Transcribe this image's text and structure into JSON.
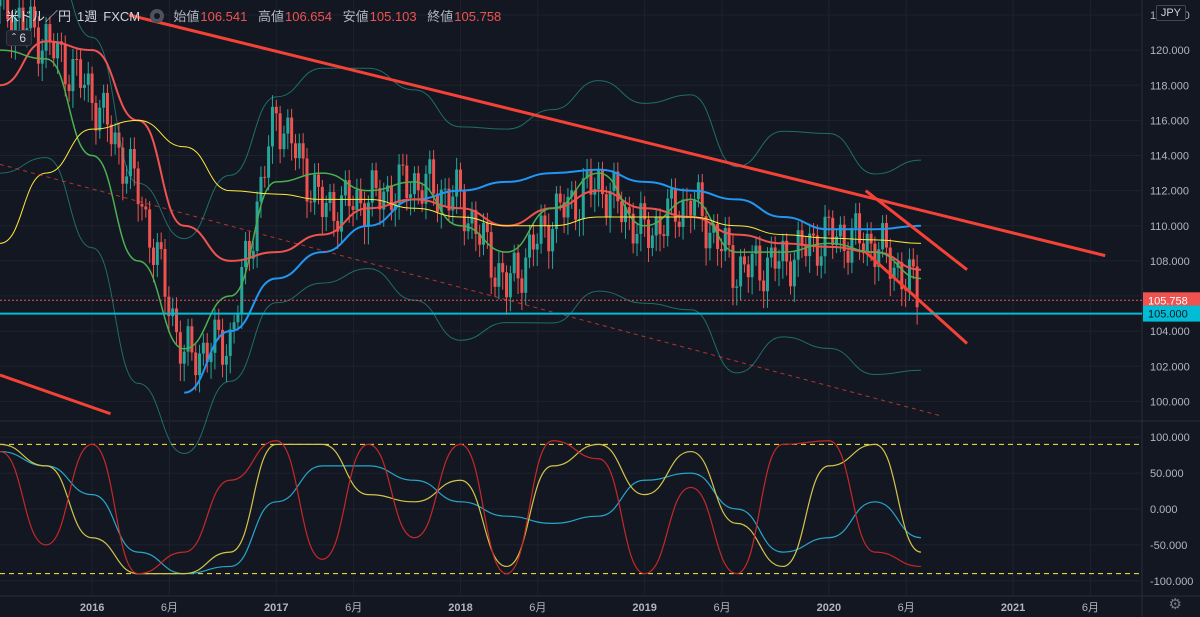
{
  "header": {
    "symbol": "米ドル／円",
    "interval": "1週",
    "source": "FXCM",
    "open_label": "始値",
    "open": "106.541",
    "high_label": "高値",
    "high": "106.654",
    "low_label": "安値",
    "low": "105.103",
    "close_label": "終値",
    "close": "105.758",
    "indicator_toggle": "6",
    "currency": "JPY"
  },
  "colors": {
    "background": "#131722",
    "up": "#26a69a",
    "down": "#ef5350",
    "trendline": "#f44336",
    "support": "#00bcd4",
    "ma_blue": "#2196f3",
    "ma_green": "#4caf50",
    "ma_yellow": "#ffeb3b",
    "bollinger": "#26a69a"
  },
  "chart_data": [
    {
      "type": "line",
      "description_source": "price panel",
      "y_ticks": [
        "122.000",
        "120.000",
        "118.000",
        "116.000",
        "114.000",
        "112.000",
        "110.000",
        "108.000",
        "106.000",
        "104.000",
        "102.000",
        "100.000"
      ],
      "ylim": [
        99,
        122
      ],
      "price_labels": {
        "last": "105.758",
        "level": "105.000"
      },
      "x_ticks": [
        "2016",
        "6月",
        "2017",
        "6月",
        "2018",
        "6月",
        "2019",
        "6月",
        "2020",
        "6月",
        "2021",
        "6月"
      ],
      "x": [
        2015.5,
        2015.75,
        2016.0,
        2016.25,
        2016.5,
        2016.75,
        2017.0,
        2017.25,
        2017.5,
        2017.75,
        2018.0,
        2018.25,
        2018.5,
        2018.75,
        2019.0,
        2019.25,
        2019.5,
        2019.75,
        2020.0,
        2020.25,
        2020.5
      ],
      "series": [
        {
          "role": "close",
          "values": [
            122.5,
            120.5,
            117.5,
            112.0,
            102.5,
            103.5,
            116.5,
            111.0,
            111.5,
            112.5,
            111.5,
            106.5,
            110.5,
            112.5,
            109.5,
            111.5,
            107.5,
            108.0,
            109.5,
            109.0,
            106.0
          ]
        },
        {
          "role": "ma-blue",
          "values": [
            null,
            null,
            null,
            null,
            100.5,
            104.0,
            107.0,
            108.5,
            110.0,
            111.5,
            112.0,
            112.5,
            113.0,
            113.2,
            112.5,
            112.0,
            111.5,
            110.5,
            109.8,
            109.8,
            110.0
          ]
        },
        {
          "role": "ma-red",
          "values": [
            118.0,
            120.5,
            120.0,
            116.0,
            110.0,
            108.0,
            108.5,
            109.5,
            111.0,
            111.5,
            111.0,
            110.0,
            111.0,
            112.0,
            111.0,
            110.5,
            109.5,
            109.0,
            108.8,
            108.5,
            107.5
          ]
        },
        {
          "role": "ma-green",
          "values": [
            120.0,
            119.5,
            114.0,
            108.0,
            103.0,
            106.0,
            112.5,
            113.0,
            112.0,
            112.5,
            110.0,
            108.5,
            111.0,
            113.0,
            110.0,
            111.5,
            108.5,
            108.5,
            109.0,
            108.5,
            107.0
          ]
        },
        {
          "role": "ma-yellow",
          "values": [
            109.0,
            113.0,
            115.5,
            116.0,
            114.5,
            112.0,
            111.8,
            111.5,
            111.5,
            111.0,
            110.5,
            110.0,
            110.0,
            110.5,
            110.5,
            110.5,
            110.0,
            109.5,
            109.3,
            109.2,
            109.0
          ]
        }
      ],
      "trendlines": [
        {
          "from": [
            2016.2,
            122.0
          ],
          "to": [
            2021.5,
            108.3
          ]
        },
        {
          "from": [
            2015.5,
            101.5
          ],
          "to": [
            2016.1,
            99.3
          ]
        },
        {
          "from": [
            2020.2,
            112.0
          ],
          "to": [
            2020.75,
            107.5
          ]
        },
        {
          "from": [
            2020.2,
            108.5
          ],
          "to": [
            2020.75,
            103.3
          ]
        },
        {
          "from": [
            2015.5,
            113.5
          ],
          "to": [
            2020.6,
            99.2
          ],
          "style": "dashed"
        }
      ]
    },
    {
      "type": "line",
      "description_source": "oscillator panel",
      "y_ticks": [
        "100.000",
        "50.000",
        "0.000",
        "-50.000",
        "-100.000"
      ],
      "ylim": [
        -110,
        110
      ],
      "reference_levels": [
        90,
        -90
      ],
      "x": [
        2015.5,
        2015.75,
        2016.0,
        2016.25,
        2016.5,
        2016.75,
        2017.0,
        2017.25,
        2017.5,
        2017.75,
        2018.0,
        2018.25,
        2018.5,
        2018.75,
        2019.0,
        2019.25,
        2019.5,
        2019.75,
        2020.0,
        2020.25,
        2020.5
      ],
      "series": [
        {
          "role": "blue",
          "values": [
            80,
            60,
            20,
            -60,
            -90,
            -80,
            10,
            60,
            60,
            40,
            10,
            -10,
            -20,
            -10,
            40,
            50,
            0,
            -60,
            -40,
            10,
            -40
          ]
        },
        {
          "role": "yellow",
          "values": [
            90,
            60,
            -40,
            -90,
            -90,
            -60,
            90,
            90,
            20,
            10,
            40,
            -80,
            60,
            90,
            20,
            80,
            -20,
            -80,
            60,
            90,
            -60
          ]
        },
        {
          "role": "red",
          "values": [
            80,
            -50,
            90,
            -90,
            -60,
            40,
            95,
            -70,
            90,
            -40,
            90,
            -90,
            95,
            70,
            -90,
            30,
            -90,
            90,
            95,
            -60,
            -80
          ]
        }
      ]
    }
  ]
}
